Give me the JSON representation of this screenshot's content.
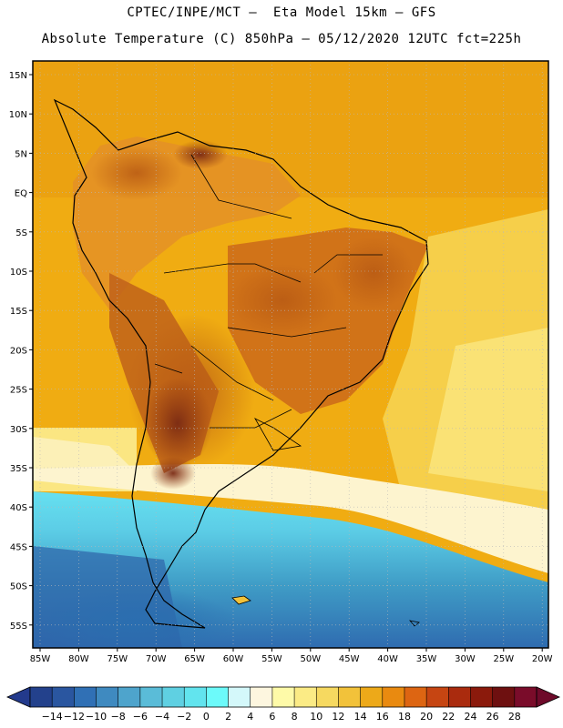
{
  "header": {
    "line1": "CPTEC/INPE/MCT –  Eta Model 15km – GFS",
    "line2": "Absolute Temperature (C) 850hPa – 05/12/2020 12UTC fct=225h"
  },
  "map": {
    "lat_ticks": [
      "15N",
      "10N",
      "5N",
      "EQ",
      "5S",
      "10S",
      "15S",
      "20S",
      "25S",
      "30S",
      "35S",
      "40S",
      "45S",
      "50S",
      "55S"
    ],
    "lon_ticks": [
      "85W",
      "80W",
      "75W",
      "70W",
      "65W",
      "60W",
      "55W",
      "50W",
      "45W",
      "40W",
      "35W",
      "30W",
      "25W",
      "20W"
    ]
  },
  "colorbar": {
    "labels": [
      "-14",
      "-12",
      "-10",
      "-8",
      "-6",
      "-4",
      "-2",
      "0",
      "2",
      "4",
      "6",
      "8",
      "10",
      "12",
      "14",
      "16",
      "18",
      "20",
      "22",
      "24",
      "26",
      "28"
    ],
    "colors": [
      "#23418c",
      "#2a56a0",
      "#3070b5",
      "#3f8ac0",
      "#4ea4cc",
      "#5abcd8",
      "#5fd0e2",
      "#62e4ee",
      "#6cfafa",
      "#d4f8fa",
      "#fdf6df",
      "#fefaa8",
      "#fbeb85",
      "#f6d960",
      "#f2c23a",
      "#eda919",
      "#e98a10",
      "#dd6512",
      "#c64512",
      "#aa2b0e",
      "#8b1a0c",
      "#6e1010",
      "#7a0c2a"
    ],
    "under_color": "#233a8c",
    "over_color": "#6e0a2a"
  }
}
